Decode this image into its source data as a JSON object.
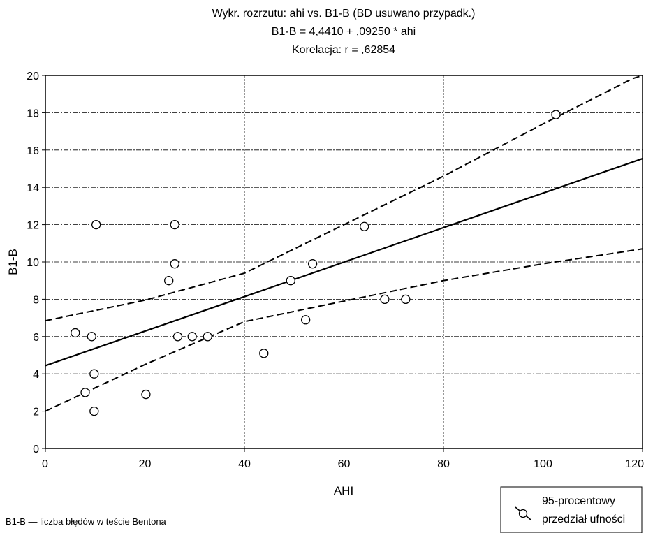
{
  "chart_data": {
    "type": "scatter",
    "title": "Wykr. rozrzutu: ahi      vs. B1-B (BD usuwano przypadk.)",
    "subtitle": "B1-B = 4,4410 + ,09250 * ahi",
    "subtitle2": "Korelacja: r =    ,62854",
    "xlabel": "AHI",
    "ylabel": "B1-B",
    "xlim": [
      0,
      120
    ],
    "ylim": [
      0,
      20
    ],
    "x_ticks": [
      0,
      20,
      40,
      60,
      80,
      100,
      120
    ],
    "y_ticks": [
      0,
      2,
      4,
      6,
      8,
      10,
      12,
      14,
      16,
      18,
      20
    ],
    "grid": true,
    "points": [
      {
        "x": 6,
        "y": 6.2
      },
      {
        "x": 8,
        "y": 3
      },
      {
        "x": 9.3,
        "y": 6
      },
      {
        "x": 9.8,
        "y": 2
      },
      {
        "x": 9.8,
        "y": 4
      },
      {
        "x": 10.2,
        "y": 12
      },
      {
        "x": 20.2,
        "y": 2.9
      },
      {
        "x": 24.8,
        "y": 9
      },
      {
        "x": 26,
        "y": 12
      },
      {
        "x": 26,
        "y": 9.9
      },
      {
        "x": 26.6,
        "y": 6
      },
      {
        "x": 29.5,
        "y": 6
      },
      {
        "x": 32.6,
        "y": 6
      },
      {
        "x": 43.9,
        "y": 5.1
      },
      {
        "x": 49.3,
        "y": 9
      },
      {
        "x": 52.3,
        "y": 6.9
      },
      {
        "x": 53.7,
        "y": 9.9
      },
      {
        "x": 64.1,
        "y": 11.9
      },
      {
        "x": 68.2,
        "y": 8
      },
      {
        "x": 72.4,
        "y": 8
      },
      {
        "x": 102.6,
        "y": 17.9
      }
    ],
    "regression": {
      "intercept": 4.441,
      "slope": 0.0925
    },
    "confidence_band": {
      "upper": [
        [
          0,
          6.85
        ],
        [
          20,
          7.95
        ],
        [
          40,
          9.4
        ],
        [
          60,
          12
        ],
        [
          80,
          14.6
        ],
        [
          100,
          17.4
        ],
        [
          120,
          20.1
        ]
      ],
      "lower": [
        [
          0,
          2
        ],
        [
          20,
          4.5
        ],
        [
          40,
          6.8
        ],
        [
          60,
          7.9
        ],
        [
          80,
          9
        ],
        [
          100,
          9.9
        ],
        [
          120,
          10.7
        ]
      ]
    },
    "legend": {
      "label_line1": "95-procentowy",
      "label_line2": "przedział ufności",
      "position": "bottom-right"
    },
    "footnote": "B1-B — liczba błędów w teście Bentona"
  }
}
